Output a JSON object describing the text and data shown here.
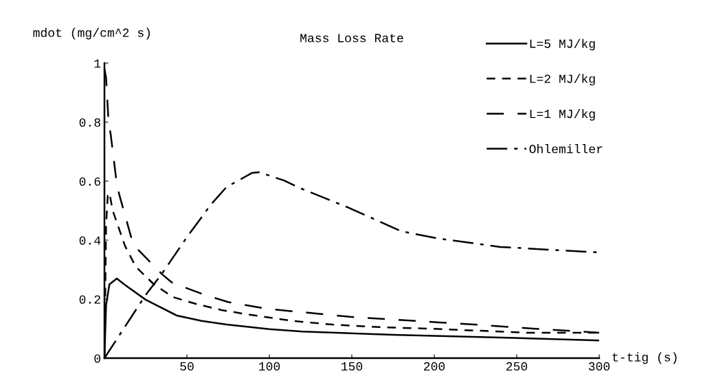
{
  "chart_data": {
    "type": "line",
    "title": "Mass Loss Rate",
    "xlabel": "t-tig (s)",
    "ylabel": "mdot (mg/cm^2 s)",
    "xlim": [
      0,
      300
    ],
    "ylim": [
      0,
      1
    ],
    "xticks": [
      50,
      100,
      150,
      200,
      250,
      300
    ],
    "yticks": [
      0,
      0.2,
      0.4,
      0.6,
      0.8,
      1
    ],
    "grid": false,
    "legend": "top right",
    "marker": "none",
    "series": [
      {
        "name": "L=5 MJ/kg",
        "color": "#000000",
        "line_style": "solid",
        "x": [
          0,
          1,
          3,
          7.5,
          12,
          25,
          44,
          59,
          74,
          100,
          120,
          175,
          240,
          300
        ],
        "values": [
          0,
          0.18,
          0.25,
          0.27,
          0.25,
          0.198,
          0.144,
          0.126,
          0.114,
          0.098,
          0.09,
          0.079,
          0.07,
          0.06
        ]
      },
      {
        "name": "L=2 MJ/kg",
        "color": "#000000",
        "line_style": "dashed",
        "x": [
          0,
          1,
          2,
          3,
          5,
          7.5,
          12.5,
          19,
          30,
          41.5,
          56,
          71,
          86,
          114,
          138,
          167,
          196,
          227,
          257,
          300
        ],
        "values": [
          0,
          0.45,
          0.55,
          0.56,
          0.5,
          0.46,
          0.38,
          0.31,
          0.25,
          0.207,
          0.183,
          0.163,
          0.149,
          0.126,
          0.114,
          0.105,
          0.1,
          0.093,
          0.086,
          0.086
        ]
      },
      {
        "name": "L=1 MJ/kg",
        "color": "#000000",
        "line_style": "long dashed",
        "x": [
          0,
          1,
          2.5,
          3.75,
          7.5,
          8.9,
          16.7,
          20,
          35,
          41,
          59,
          75,
          99,
          149,
          203,
          224,
          260,
          300
        ],
        "values": [
          0.98,
          0.95,
          0.8,
          0.76,
          0.59,
          0.556,
          0.4,
          0.37,
          0.284,
          0.256,
          0.218,
          0.19,
          0.167,
          0.14,
          0.121,
          0.114,
          0.1,
          0.086
        ]
      },
      {
        "name": "Ohlemiller",
        "color": "#000000",
        "line_style": "dashdot",
        "x": [
          0,
          25,
          34.6,
          50,
          64.5,
          74,
          89.6,
          94,
          109,
          117,
          148,
          180,
          203,
          240,
          300
        ],
        "values": [
          0,
          0.214,
          0.284,
          0.41,
          0.52,
          0.58,
          0.628,
          0.63,
          0.602,
          0.58,
          0.51,
          0.43,
          0.405,
          0.377,
          0.358
        ]
      }
    ]
  }
}
